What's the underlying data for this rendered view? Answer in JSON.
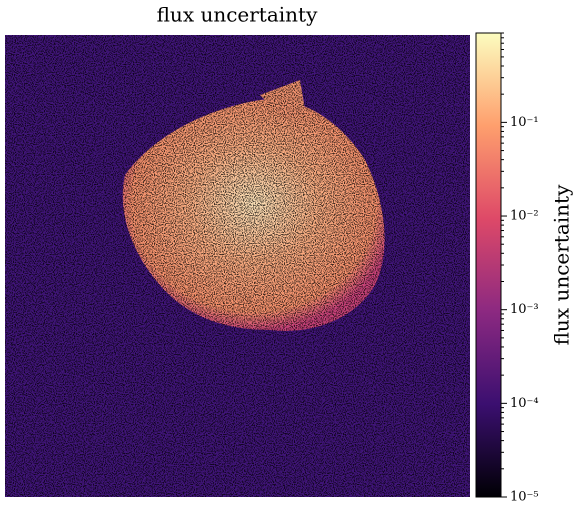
{
  "chart_data": {
    "type": "image",
    "title": "flux uncertainty",
    "colorbar": {
      "label": "flux uncertainty",
      "log": true,
      "minor_ticks": true,
      "ylim": [
        1e-05,
        0.9
      ],
      "yticks": [
        {
          "value": 1e-05,
          "label": "10⁻⁵"
        },
        {
          "value": 0.0001,
          "label": "10⁻⁴"
        },
        {
          "value": 0.001,
          "label": "10⁻³"
        },
        {
          "value": 0.01,
          "label": "10⁻²"
        },
        {
          "value": 0.1,
          "label": "10⁻¹"
        }
      ],
      "colormap": [
        "#000004",
        "#3b0f70",
        "#8c2981",
        "#de4968",
        "#fe9f6d",
        "#fcfdbf"
      ]
    }
  }
}
